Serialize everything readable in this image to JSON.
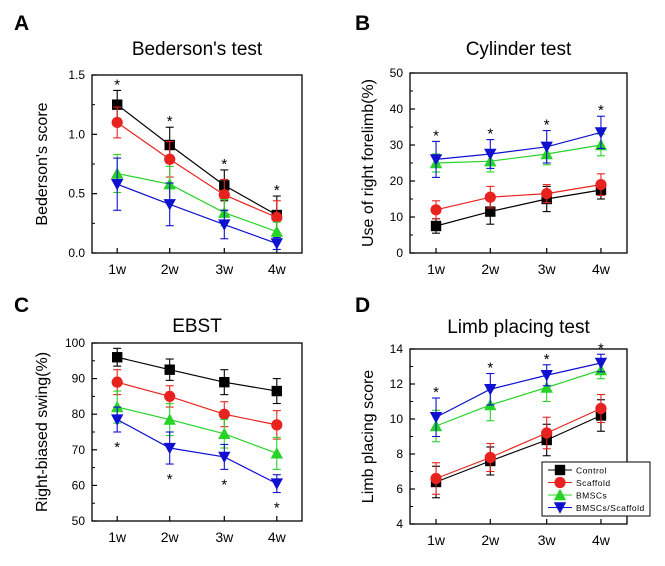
{
  "chart_data": [
    {
      "type": "line",
      "panel_label": "A",
      "title": "Bederson's test",
      "ylabel": "Bederson's score",
      "categories": [
        "1w",
        "2w",
        "3w",
        "4w"
      ],
      "ylim": [
        0,
        1.5
      ],
      "yticks": [
        0.0,
        0.5,
        1.0,
        1.5
      ],
      "ytick_labels": [
        "0.0",
        "0.5",
        "1.0",
        "1.5"
      ],
      "series": [
        {
          "name": "Control",
          "values": [
            1.25,
            0.91,
            0.57,
            0.32
          ],
          "errors": [
            0.12,
            0.15,
            0.13,
            0.16
          ]
        },
        {
          "name": "Scaffold",
          "values": [
            1.1,
            0.79,
            0.49,
            0.3
          ],
          "errors": [
            0.13,
            0.15,
            0.13,
            0.14
          ]
        },
        {
          "name": "BMSCs",
          "values": [
            0.67,
            0.58,
            0.34,
            0.18
          ],
          "errors": [
            0.16,
            0.15,
            0.11,
            0.08
          ]
        },
        {
          "name": "BMSCs/Scaffold",
          "values": [
            0.58,
            0.41,
            0.24,
            0.08
          ],
          "errors": [
            0.22,
            0.18,
            0.12,
            0.05
          ]
        }
      ],
      "annotations": [
        "*",
        "*",
        "*",
        "*"
      ]
    },
    {
      "type": "line",
      "panel_label": "B",
      "title": "Cylinder test",
      "ylabel": "Use of right forelimb(%)",
      "categories": [
        "1w",
        "2w",
        "3w",
        "4w"
      ],
      "ylim": [
        0,
        50
      ],
      "yticks": [
        0,
        10,
        20,
        30,
        40,
        50
      ],
      "ytick_labels": [
        "0",
        "10",
        "20",
        "30",
        "40",
        "50"
      ],
      "series": [
        {
          "name": "Control",
          "values": [
            7.5,
            11.5,
            15.0,
            17.5
          ],
          "errors": [
            2.0,
            3.5,
            3.5,
            2.5
          ]
        },
        {
          "name": "Scaffold",
          "values": [
            12.0,
            15.5,
            16.5,
            19.0
          ],
          "errors": [
            2.5,
            3.0,
            2.5,
            3.0
          ]
        },
        {
          "name": "BMSCs",
          "values": [
            25.0,
            25.5,
            27.5,
            30.0
          ],
          "errors": [
            2.5,
            3.0,
            3.0,
            3.0
          ]
        },
        {
          "name": "BMSCs/Scaffold",
          "values": [
            26.0,
            27.5,
            29.5,
            33.5
          ],
          "errors": [
            5.0,
            4.0,
            4.5,
            4.5
          ]
        }
      ],
      "annotations": [
        "*",
        "*",
        "*",
        "*"
      ]
    },
    {
      "type": "line",
      "panel_label": "C",
      "title": "EBST",
      "ylabel": "Right-biased swing(%)",
      "categories": [
        "1w",
        "2w",
        "3w",
        "4w"
      ],
      "ylim": [
        50,
        100
      ],
      "yticks": [
        50,
        60,
        70,
        80,
        90,
        100
      ],
      "ytick_labels": [
        "50",
        "60",
        "70",
        "80",
        "90",
        "100"
      ],
      "series": [
        {
          "name": "Control",
          "values": [
            96.0,
            92.5,
            89.0,
            86.5
          ],
          "errors": [
            2.5,
            3.0,
            3.5,
            3.5
          ]
        },
        {
          "name": "Scaffold",
          "values": [
            89.0,
            85.0,
            80.0,
            77.0
          ],
          "errors": [
            3.5,
            3.0,
            3.5,
            4.0
          ]
        },
        {
          "name": "BMSCs",
          "values": [
            82.0,
            78.5,
            74.5,
            69.0
          ],
          "errors": [
            4.5,
            4.5,
            4.0,
            4.5
          ]
        },
        {
          "name": "BMSCs/Scaffold",
          "values": [
            78.5,
            70.5,
            68.0,
            60.5
          ],
          "errors": [
            3.5,
            4.5,
            3.5,
            2.5
          ]
        }
      ],
      "annotations": [
        "*",
        "*",
        "*",
        "*"
      ]
    },
    {
      "type": "line",
      "panel_label": "D",
      "title": "Limb placing test",
      "ylabel": "Limb placing score",
      "categories": [
        "1w",
        "2w",
        "3w",
        "4w"
      ],
      "ylim": [
        4,
        14
      ],
      "yticks": [
        4,
        6,
        8,
        10,
        12,
        14
      ],
      "ytick_labels": [
        "4",
        "6",
        "8",
        "10",
        "12",
        "14"
      ],
      "series": [
        {
          "name": "Control",
          "values": [
            6.4,
            7.6,
            8.8,
            10.2
          ],
          "errors": [
            0.9,
            0.8,
            0.9,
            0.9
          ]
        },
        {
          "name": "Scaffold",
          "values": [
            6.6,
            7.8,
            9.2,
            10.6
          ],
          "errors": [
            0.9,
            0.8,
            0.9,
            0.8
          ]
        },
        {
          "name": "BMSCs",
          "values": [
            9.6,
            10.8,
            11.8,
            12.8
          ],
          "errors": [
            0.9,
            0.9,
            0.8,
            0.5
          ]
        },
        {
          "name": "BMSCs/Scaffold",
          "values": [
            10.1,
            11.7,
            12.5,
            13.2
          ],
          "errors": [
            1.1,
            0.9,
            0.6,
            0.5
          ]
        }
      ],
      "annotations": [
        "*",
        "*",
        "*",
        "*"
      ],
      "legend": {
        "placement": "bottom-right",
        "entries": [
          "Control",
          "Scaffold",
          "BMSCs",
          "BMSCs/Scaffold"
        ]
      }
    }
  ],
  "series_styles": {
    "Control": {
      "color": "#000000",
      "marker": "square"
    },
    "Scaffold": {
      "color": "#e8231f",
      "marker": "circle"
    },
    "BMSCs": {
      "color": "#27d327",
      "marker": "triangle-up"
    },
    "BMSCs/Scaffold": {
      "color": "#1010d0",
      "marker": "triangle-down"
    }
  }
}
